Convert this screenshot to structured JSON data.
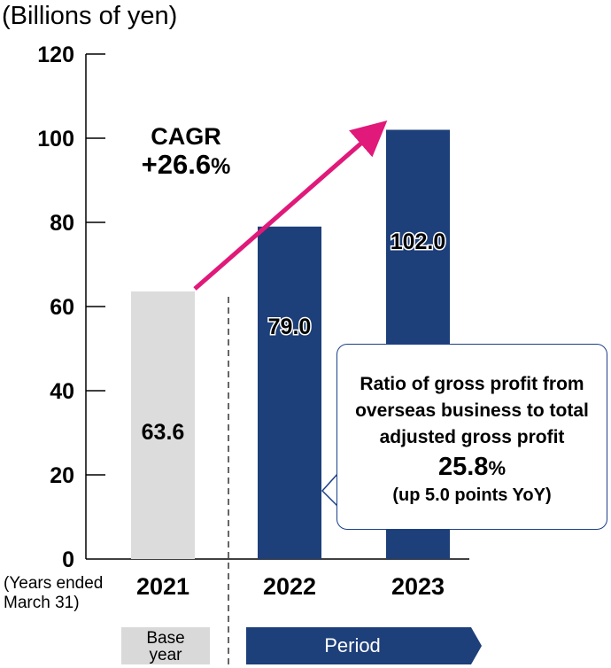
{
  "unit_label": "(Billions of yen)",
  "cagr": {
    "label": "CAGR",
    "value": "+26.6",
    "unit": "%"
  },
  "years_note": {
    "line1": "(Years ended",
    "line2": "March 31)"
  },
  "callout": {
    "line1": "Ratio of gross profit from",
    "line2": "overseas business to total",
    "line3": "adjusted gross profit",
    "ratio": "25.8",
    "ratio_unit": "%",
    "yoy": "(up 5.0 points YoY)"
  },
  "bands": {
    "base": [
      "Base",
      "year"
    ],
    "period": "Period"
  },
  "colors": {
    "base_bar": "#dcdcdc",
    "period_bar": "#1d3f7a",
    "arrow": "#e0197a",
    "callout_border": "#1d3f88"
  },
  "chart_data": {
    "type": "bar",
    "categories": [
      "2021",
      "2022",
      "2023"
    ],
    "values": [
      63.6,
      79.0,
      102.0
    ],
    "value_labels": [
      "63.6",
      "79.0",
      "102.0"
    ],
    "ylim": [
      0,
      120
    ],
    "yticks": [
      0,
      20,
      40,
      60,
      80,
      100,
      120
    ],
    "grid": false,
    "legend": "none"
  }
}
